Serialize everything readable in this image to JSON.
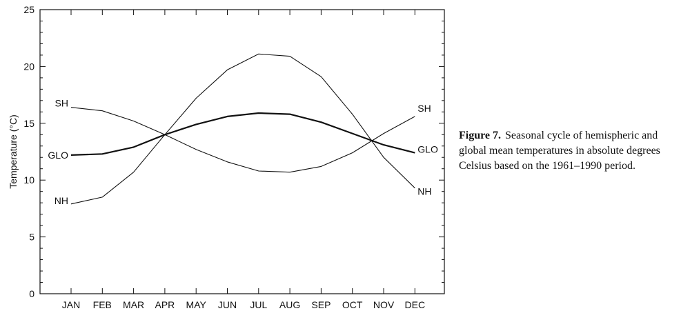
{
  "chart_data": {
    "type": "line",
    "categories": [
      "JAN",
      "FEB",
      "MAR",
      "APR",
      "MAY",
      "JUN",
      "JUL",
      "AUG",
      "SEP",
      "OCT",
      "NOV",
      "DEC"
    ],
    "series": [
      {
        "name": "NH",
        "values": [
          7.9,
          8.5,
          10.7,
          14.0,
          17.2,
          19.7,
          21.1,
          20.9,
          19.1,
          15.8,
          12.0,
          9.3
        ]
      },
      {
        "name": "SH",
        "values": [
          16.4,
          16.1,
          15.2,
          14.0,
          12.7,
          11.6,
          10.8,
          10.7,
          11.2,
          12.4,
          14.1,
          15.6
        ]
      },
      {
        "name": "GLO",
        "values": [
          12.2,
          12.3,
          12.9,
          14.0,
          14.9,
          15.6,
          15.9,
          15.8,
          15.1,
          14.1,
          13.1,
          12.4
        ]
      }
    ],
    "ylabel": "Temperature (°C)",
    "xlabel": "",
    "ylim": [
      0,
      25
    ],
    "yticks": [
      "0",
      "5",
      "10",
      "15",
      "20",
      "25"
    ],
    "grid": false,
    "legend": "inline labels at both ends of each line"
  },
  "caption": {
    "label": "Figure 7.",
    "text": "Seasonal cycle of hemispheric and global mean temperatures in absolute degrees Celsius based on the 1961–1990 period."
  }
}
